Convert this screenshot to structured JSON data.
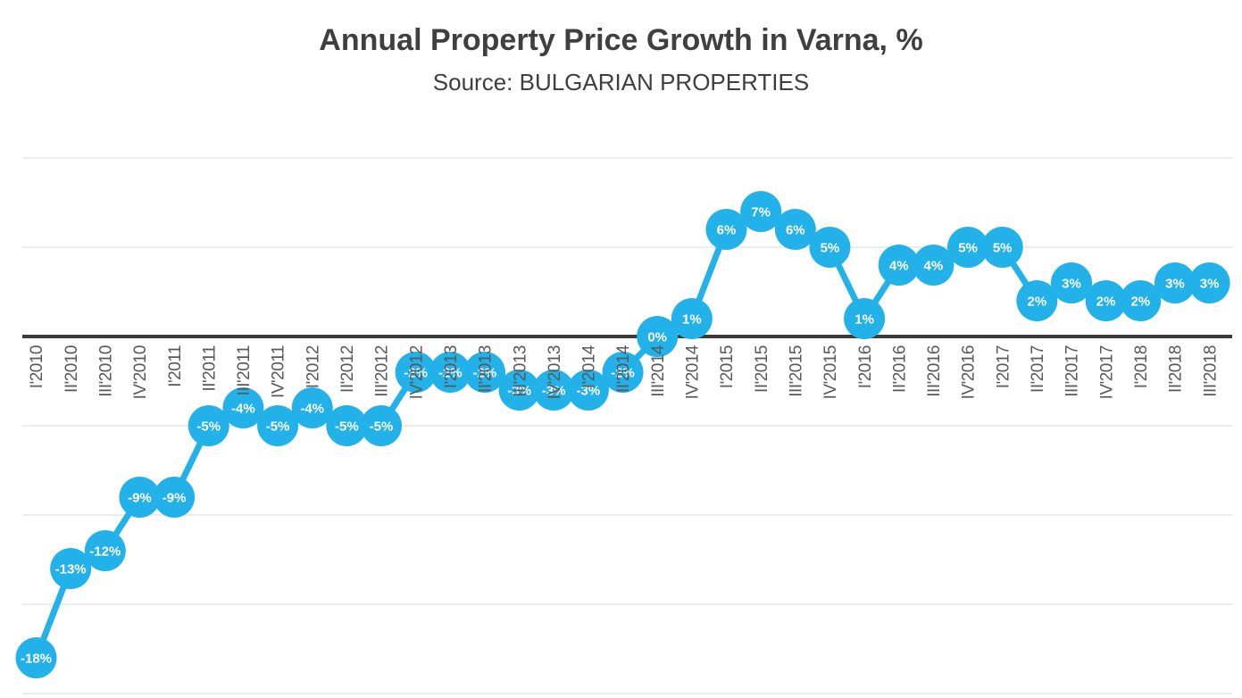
{
  "chart_data": {
    "type": "line",
    "title": "Annual Property Price Growth in Varna, %",
    "subtitle": "Source: BULGARIAN PROPERTIES",
    "categories": [
      "I'2010",
      "II'2010",
      "III'2010",
      "IV'2010",
      "I'2011",
      "II'2011",
      "III'2011",
      "IV'2011",
      "I'2012",
      "II'2012",
      "III'2012",
      "IV'2012",
      "I'2013",
      "II'2013",
      "III'2013",
      "IV'2013",
      "I'2014",
      "II'2014",
      "III'2014",
      "IV'2014",
      "I'2015",
      "II'2015",
      "III'2015",
      "IV'2015",
      "I'2016",
      "II'2016",
      "III'2016",
      "IV'2016",
      "I'2017",
      "II'2017",
      "III'2017",
      "IV'2017",
      "I'2018",
      "II'2018",
      "III'2018"
    ],
    "values": [
      -18,
      -13,
      -12,
      -9,
      -9,
      -5,
      -4,
      -5,
      -4,
      -5,
      -5,
      -2,
      -2,
      -2,
      -3,
      -3,
      -3,
      -2,
      0,
      1,
      6,
      7,
      6,
      5,
      1,
      4,
      4,
      5,
      5,
      2,
      3,
      2,
      2,
      3,
      3
    ],
    "value_suffix": "%",
    "data_labels": true,
    "xlabel": "",
    "ylabel": "",
    "ylim": [
      -20,
      10
    ],
    "y_gridlines": [
      10,
      5,
      -5,
      -10,
      -15,
      -20
    ],
    "zero_axis": true,
    "legend": "none",
    "colors": {
      "marker": "#22b1e8",
      "line": "#22b1e8",
      "label_text": "#ffffff",
      "axis_text": "#595959",
      "title_text": "#3f3f3f",
      "gridline": "#d9d9d9",
      "zero_line": "#3b3b3b",
      "background": "#ffffff"
    }
  }
}
